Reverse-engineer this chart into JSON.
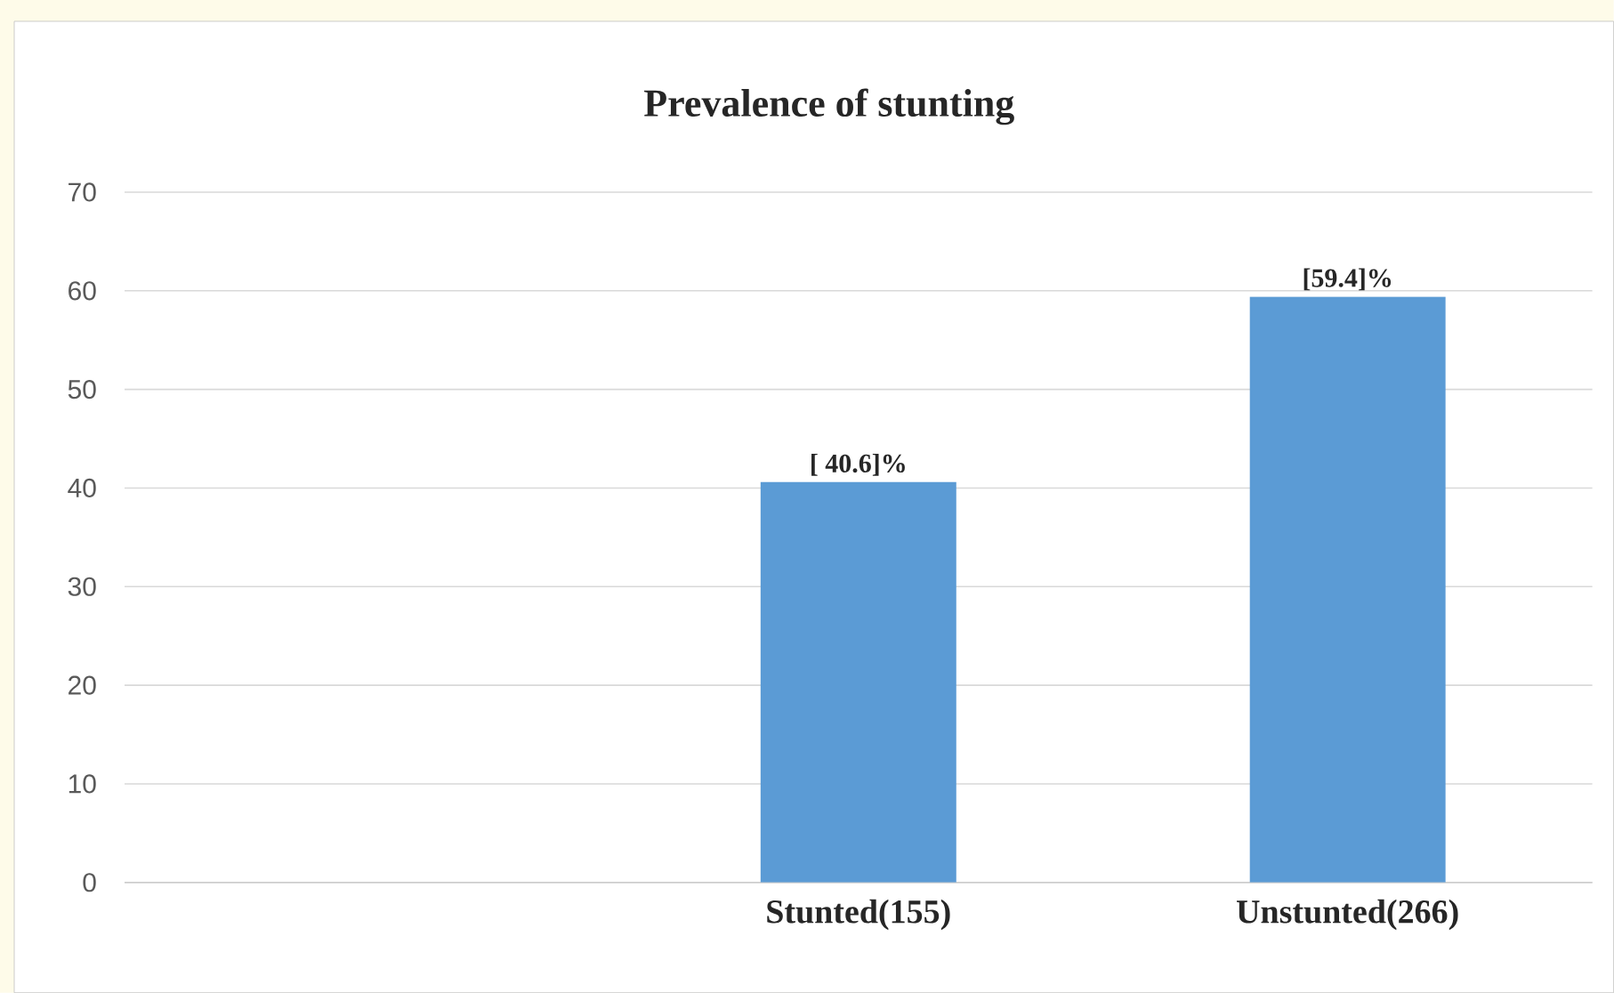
{
  "chart_data": {
    "type": "bar",
    "title": "Prevalence of stunting",
    "categories": [
      null,
      "Stunted(155)",
      "Unstunted(266)"
    ],
    "values": [
      null,
      40.6,
      59.4
    ],
    "value_labels": [
      null,
      "[ 40.6]%",
      "[59.4]%"
    ],
    "color": "#5b9bd5",
    "ylim": [
      0,
      70
    ],
    "yticks": [
      0,
      10,
      20,
      30,
      40,
      50,
      60,
      70
    ],
    "grid": "y"
  }
}
